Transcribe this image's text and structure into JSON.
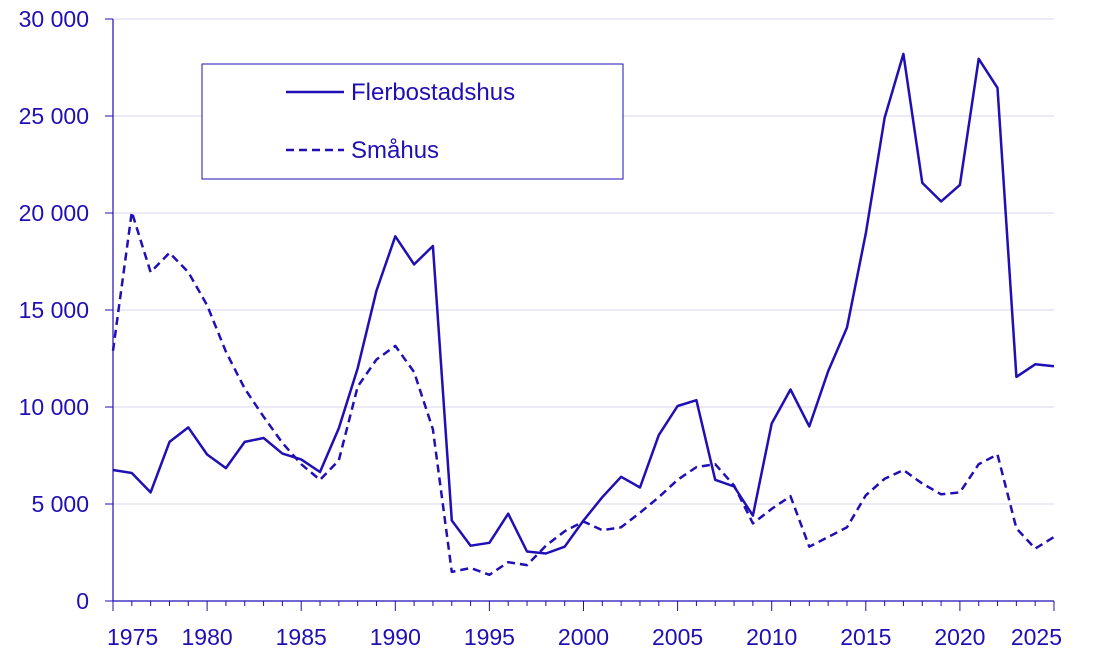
{
  "chart_data": {
    "type": "line",
    "title": "",
    "xlabel": "",
    "ylabel": "",
    "xlim": [
      1975,
      2025
    ],
    "ylim": [
      0,
      30000
    ],
    "x_ticks": [
      1975,
      1980,
      1985,
      1990,
      1995,
      2000,
      2005,
      2010,
      2015,
      2020,
      2025
    ],
    "y_ticks": [
      0,
      5000,
      10000,
      15000,
      20000,
      25000,
      30000
    ],
    "y_tick_labels": [
      "0",
      "5 000",
      "10 000",
      "15 000",
      "20 000",
      "25 000",
      "30 000"
    ],
    "grid": "horizontal",
    "legend_position": "top-left",
    "color": "#1f0fb4",
    "x": [
      1975,
      1976,
      1977,
      1978,
      1979,
      1980,
      1981,
      1982,
      1983,
      1984,
      1985,
      1986,
      1987,
      1988,
      1989,
      1990,
      1991,
      1992,
      1993,
      1994,
      1995,
      1996,
      1997,
      1998,
      1999,
      2000,
      2001,
      2002,
      2003,
      2004,
      2005,
      2006,
      2007,
      2008,
      2009,
      2010,
      2011,
      2012,
      2013,
      2014,
      2015,
      2016,
      2017,
      2018,
      2019,
      2020,
      2021,
      2022,
      2023,
      2024,
      2025
    ],
    "series": [
      {
        "name": "Flerbostadshus",
        "style": "solid",
        "values": [
          6750,
          6600,
          5600,
          8200,
          8950,
          7550,
          6850,
          8200,
          8400,
          7600,
          7300,
          6650,
          8900,
          12000,
          16000,
          18800,
          17350,
          18300,
          4150,
          2850,
          3000,
          4500,
          2550,
          2450,
          2800,
          4150,
          5350,
          6400,
          5850,
          8550,
          10050,
          10350,
          6250,
          5900,
          4400,
          9150,
          10900,
          9000,
          11850,
          14100,
          18950,
          24900,
          28200,
          21550,
          20600,
          21450,
          27950,
          26450,
          11550,
          12200,
          12100
        ]
      },
      {
        "name": "Småhus",
        "style": "dashed",
        "values": [
          12900,
          20050,
          16950,
          17950,
          16950,
          15250,
          12850,
          10950,
          9500,
          8150,
          7050,
          6250,
          7250,
          11050,
          12450,
          13150,
          11800,
          8850,
          1500,
          1700,
          1350,
          2000,
          1850,
          2850,
          3600,
          4100,
          3650,
          3800,
          4550,
          5350,
          6250,
          6900,
          7050,
          5950,
          4000,
          4750,
          5400,
          2800,
          3300,
          3800,
          5450,
          6300,
          6750,
          6050,
          5500,
          5600,
          7050,
          7550,
          3750,
          2700,
          3300
        ]
      }
    ]
  }
}
